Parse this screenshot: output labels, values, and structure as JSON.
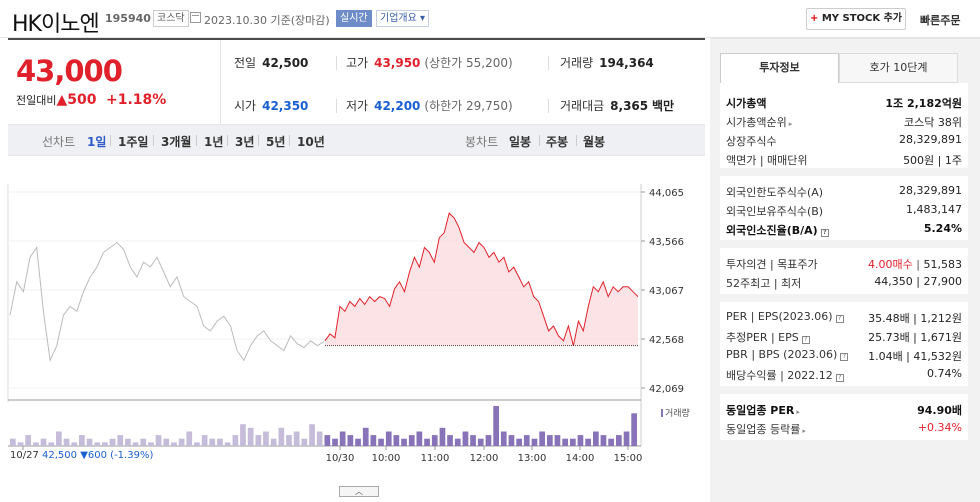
{
  "header": {
    "name": "HK이노엔",
    "code": "195940",
    "market": "코스닥",
    "date": "2023.10.30 기준(장마감)",
    "live_badge": "실시간",
    "company_badge": "기업개요",
    "mystock_label": "MY STOCK 추가",
    "quick_order": "빠른주문"
  },
  "quote": {
    "price": "43,000",
    "change_label": "전일대비",
    "change_value": "500",
    "change_pct": "+1.18%",
    "stats": {
      "prev_close_label": "전일",
      "prev_close": "42,500",
      "high_label": "고가",
      "high": "43,950",
      "upper_limit": "(상한가 55,200)",
      "volume_label": "거래량",
      "volume": "194,364",
      "open_label": "시가",
      "open": "42,350",
      "low_label": "저가",
      "low": "42,200",
      "lower_limit": "(하한가 29,750)",
      "amount_label": "거래대금",
      "amount": "8,365",
      "amount_unit": "백만"
    }
  },
  "tabs": {
    "chart_label": "선차트",
    "periods": [
      "1일",
      "1주일",
      "3개월",
      "1년",
      "3년",
      "5년",
      "10년"
    ],
    "active_period": "1일",
    "candle_label": "봉차트",
    "candles": [
      "일봉",
      "주봉",
      "월봉"
    ]
  },
  "chart_data": {
    "type": "line",
    "y_ticks": [
      "44,065",
      "43,566",
      "43,067",
      "42,568",
      "42,069"
    ],
    "ylim": [
      42069,
      44065
    ],
    "prev_close": 42500,
    "x_ticks": [
      "10/27",
      "10/30",
      "10:00",
      "11:00",
      "12:00",
      "13:00",
      "14:00",
      "15:00"
    ],
    "prev_day_series": [
      42810,
      43150,
      43050,
      43400,
      43500,
      42850,
      42350,
      42500,
      42810,
      42900,
      42850,
      43050,
      43200,
      43300,
      43450,
      43500,
      43550,
      43480,
      43300,
      43200,
      43350,
      43300,
      43400,
      43250,
      43100,
      43200,
      43000,
      42950,
      42900,
      42700,
      42650,
      42750,
      42800,
      42700,
      42450,
      42350,
      42500,
      42600,
      42650,
      42550,
      42500,
      42450,
      42600,
      42520,
      42480,
      42550,
      42500,
      42540
    ],
    "today_series": [
      42550,
      42620,
      42580,
      42900,
      42850,
      42950,
      42900,
      42980,
      42920,
      43000,
      42950,
      43000,
      42980,
      42900,
      43080,
      43150,
      43050,
      43250,
      43400,
      43300,
      43500,
      43450,
      43350,
      43600,
      43650,
      43850,
      43800,
      43700,
      43550,
      43500,
      43450,
      43550,
      43500,
      43400,
      43450,
      43350,
      43400,
      43250,
      43300,
      43200,
      43100,
      43150,
      43000,
      42950,
      42800,
      42650,
      42700,
      42600,
      42550,
      42700,
      42500,
      42750,
      42650,
      42900,
      43100,
      43050,
      43150,
      43000,
      43100,
      43050,
      43100,
      43100,
      43050,
      43000
    ],
    "volume_label": "거래량",
    "volume": [
      2,
      1,
      3,
      1,
      2,
      1,
      4,
      2,
      1,
      3,
      2,
      1,
      1,
      2,
      3,
      2,
      1,
      2,
      1,
      3,
      2,
      1,
      2,
      4,
      1,
      3,
      2,
      2,
      1,
      3,
      6,
      5,
      3,
      4,
      2,
      5,
      3,
      4,
      2,
      6,
      4,
      3,
      2,
      4,
      3,
      2,
      5,
      3,
      2,
      4,
      3,
      2,
      3,
      4,
      2,
      3,
      5,
      3,
      2,
      4,
      3,
      2,
      3,
      11,
      4,
      3,
      2,
      3,
      2,
      4,
      3,
      3,
      2,
      2,
      3,
      2,
      4,
      3,
      2,
      3,
      4,
      9
    ],
    "prev_day_note": {
      "date": "10/27",
      "price": "42,500",
      "change": "▼600",
      "pct": "(-1.39%)"
    }
  },
  "right_panel": {
    "tab_active": "투자정보",
    "tab_other": "호가 10단계",
    "group1": [
      {
        "label": "시가총액",
        "value": "1조 2,182억원",
        "bold": true
      },
      {
        "label": "시가총액순위",
        "value": "코스닥 38위"
      },
      {
        "label": "상장주식수",
        "value": "28,329,891"
      },
      {
        "label": "액면가 | 매매단위",
        "value": "500원 | 1주"
      }
    ],
    "group2": [
      {
        "label": "외국인한도주식수(A)",
        "value": "28,329,891"
      },
      {
        "label": "외국인보유주식수(B)",
        "value": "1,483,147"
      },
      {
        "label": "외국인소진율(B/A)",
        "value": "5.24%",
        "bold": true
      }
    ],
    "group3": [
      {
        "label": "투자의견 | 목표주가",
        "opinion": "4.00매수",
        "target": "51,583"
      },
      {
        "label": "52주최고 | 최저",
        "value": "44,350 | 27,900"
      }
    ],
    "group4": [
      {
        "label": "PER | EPS(2023.06)",
        "value": "35.48배 | 1,212원"
      },
      {
        "label": "추정PER | EPS",
        "value": "25.73배 | 1,671원"
      },
      {
        "label": "PBR | BPS (2023.06)",
        "value": "1.04배 | 41,532원"
      },
      {
        "label": "배당수익률 | 2022.12",
        "value": "0.74%"
      }
    ],
    "group5": [
      {
        "label": "동일업종 PER",
        "value": "94.90배",
        "bold": true
      },
      {
        "label": "동일업종 등락률",
        "value": "+0.34%",
        "red": true
      }
    ]
  }
}
